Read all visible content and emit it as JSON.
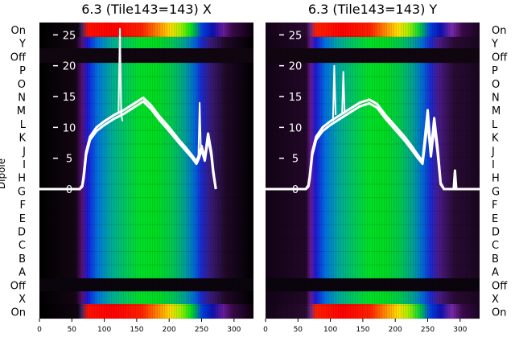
{
  "chart_data": [
    {
      "type": "heatmap",
      "title": "6.3 (Tile143=143) X",
      "ylabel": "Dipole",
      "dipole_labels": [
        "On",
        "Y",
        "Off",
        "P",
        "O",
        "N",
        "M",
        "L",
        "K",
        "J",
        "I",
        "H",
        "G",
        "F",
        "E",
        "D",
        "C",
        "B",
        "A",
        "Off",
        "X",
        "On"
      ],
      "x_ticks": [
        0,
        50,
        100,
        150,
        200,
        250,
        300
      ],
      "x_range": [
        0,
        330
      ],
      "overlay_y_ticks": [
        0,
        5,
        10,
        15,
        20,
        25
      ],
      "overlay_y_range": [
        -21,
        27
      ],
      "overlay_series": [
        {
          "x": [
            0,
            62,
            66,
            68,
            70,
            72,
            78,
            88,
            100,
            115,
            130,
            145,
            160,
            172,
            185,
            200,
            215,
            225,
            235,
            242,
            246,
            250,
            255,
            260,
            265,
            268,
            272
          ],
          "y": [
            0,
            0,
            0.6,
            2,
            4,
            6,
            8.5,
            10,
            11,
            12,
            12.8,
            13.8,
            14.8,
            13.6,
            11.8,
            10,
            8,
            6.8,
            5.5,
            4.5,
            5.5,
            7,
            5,
            9,
            6,
            3,
            0
          ]
        },
        {
          "x": [
            0,
            62,
            66,
            68,
            70,
            72,
            78,
            88,
            100,
            115,
            130,
            145,
            160,
            172,
            185,
            200,
            215,
            225,
            235,
            242,
            246,
            250,
            255,
            260,
            265,
            268,
            272
          ],
          "y": [
            0,
            0,
            0.4,
            1.6,
            3.5,
            5.5,
            8,
            9.4,
            10.4,
            11.4,
            12.2,
            13.2,
            14.2,
            13,
            11.2,
            9.4,
            7.5,
            6.3,
            5.1,
            4.1,
            5,
            6.4,
            4.6,
            8.3,
            5.5,
            2.6,
            0
          ]
        },
        {
          "x": [
            122,
            124,
            126,
            128
          ],
          "y": [
            12.2,
            26,
            12.3,
            11
          ]
        },
        {
          "x": [
            245,
            247,
            249
          ],
          "y": [
            5,
            14,
            6
          ]
        }
      ]
    },
    {
      "type": "heatmap",
      "title": "6.3 (Tile143=143) Y",
      "ylabel": "",
      "dipole_labels": [
        "On",
        "Y",
        "Off",
        "P",
        "O",
        "N",
        "M",
        "L",
        "K",
        "J",
        "I",
        "H",
        "G",
        "F",
        "E",
        "D",
        "C",
        "B",
        "A",
        "Off",
        "X",
        "On"
      ],
      "x_ticks": [
        0,
        50,
        100,
        150,
        200,
        250,
        300
      ],
      "x_range": [
        0,
        330
      ],
      "overlay_y_ticks": [
        0,
        5,
        10,
        15,
        20,
        25
      ],
      "overlay_y_range": [
        -21,
        27
      ],
      "overlay_series": [
        {
          "x": [
            0,
            62,
            66,
            68,
            70,
            72,
            78,
            88,
            100,
            115,
            130,
            145,
            160,
            172,
            185,
            200,
            215,
            225,
            235,
            242,
            250,
            255,
            260,
            265,
            270,
            275,
            290,
            292,
            294,
            300,
            330
          ],
          "y": [
            0,
            0,
            0.6,
            2,
            4,
            6,
            8.5,
            10,
            11,
            12,
            13,
            14,
            14.5,
            13.8,
            12,
            10.2,
            8.4,
            7,
            5.5,
            4.5,
            12.8,
            6,
            11.5,
            7,
            1,
            0,
            0,
            3,
            0,
            0,
            0
          ]
        },
        {
          "x": [
            0,
            62,
            66,
            68,
            70,
            72,
            78,
            88,
            100,
            115,
            130,
            145,
            160,
            172,
            185,
            200,
            215,
            225,
            235,
            242,
            250,
            255,
            260,
            265,
            270,
            275,
            330
          ],
          "y": [
            0,
            0,
            0.4,
            1.6,
            3.5,
            5.5,
            8,
            9.4,
            10.4,
            11.4,
            12.4,
            13.4,
            13.9,
            13.2,
            11.4,
            9.6,
            7.8,
            6.4,
            5,
            4.1,
            11,
            5.3,
            10.2,
            6.2,
            0.8,
            0,
            0
          ]
        },
        {
          "x": [
            104,
            106,
            108
          ],
          "y": [
            11,
            20,
            12
          ]
        },
        {
          "x": [
            118,
            120,
            122
          ],
          "y": [
            12,
            19,
            12.5
          ]
        }
      ]
    }
  ]
}
